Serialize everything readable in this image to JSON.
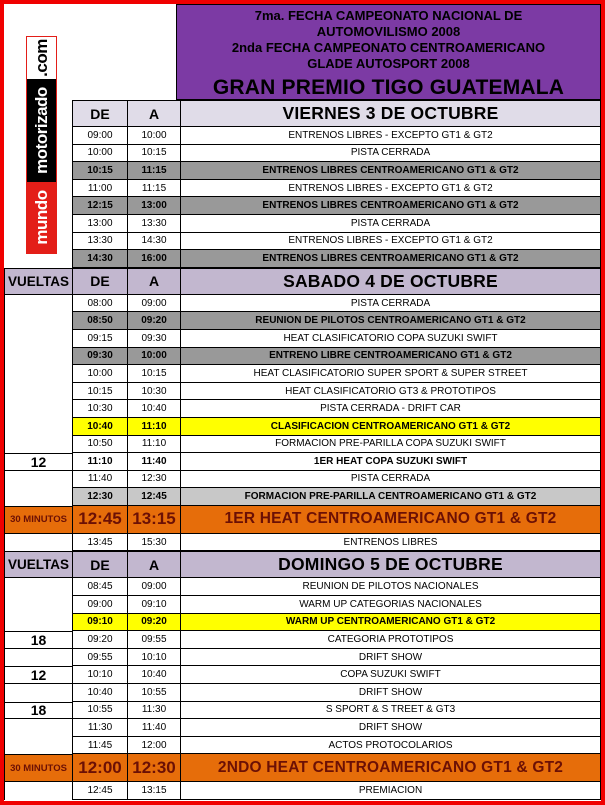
{
  "banner": {
    "mundo": "mundo",
    "motorizado": "motorizado",
    "com": ".com"
  },
  "header": {
    "lines": [
      "7ma. FECHA CAMPEONATO NACIONAL DE",
      "AUTOMOVILISMO 2008",
      "2nda FECHA CAMPEONATO CENTROAMERICANO",
      "GLADE AUTOSPORT 2008"
    ],
    "title": "GRAN PREMIO TIGO GUATEMALA"
  },
  "columns": {
    "vueltas": "VUELTAS",
    "de": "DE",
    "a": "A"
  },
  "colors": {
    "frame_red": "#F00000",
    "banner_red": "#E31E18",
    "purple": "#7C3AA4",
    "header_light": "#E0DCE8",
    "header_lavender": "#C2B7CF",
    "row_dark_gray": "#999999",
    "row_light_gray": "#C8C8C8",
    "row_yellow": "#FFFF00",
    "row_orange": "#E66D0A",
    "maroon_text": "#6B1005"
  },
  "sections": [
    {
      "title": "VIERNES 3 DE OCTUBRE",
      "rows": [
        {
          "vueltas": "",
          "de": "09:00",
          "a": "10:00",
          "event": "ENTRENOS LIBRES - EXCEPTO GT1 & GT2",
          "style": "plain"
        },
        {
          "vueltas": "",
          "de": "10:00",
          "a": "10:15",
          "event": "PISTA CERRADA",
          "style": "plain"
        },
        {
          "vueltas": "",
          "de": "10:15",
          "a": "11:15",
          "event": "ENTRENOS LIBRES CENTROAMERICANO GT1 & GT2",
          "style": "dark"
        },
        {
          "vueltas": "",
          "de": "11:00",
          "a": "11:15",
          "event": "ENTRENOS LIBRES - EXCEPTO GT1 & GT2",
          "style": "plain"
        },
        {
          "vueltas": "",
          "de": "12:15",
          "a": "13:00",
          "event": "ENTRENOS LIBRES CENTROAMERICANO GT1 & GT2",
          "style": "dark"
        },
        {
          "vueltas": "",
          "de": "13:00",
          "a": "13:30",
          "event": "PISTA CERRADA",
          "style": "plain"
        },
        {
          "vueltas": "",
          "de": "13:30",
          "a": "14:30",
          "event": "ENTRENOS LIBRES - EXCEPTO GT1 & GT2",
          "style": "plain"
        },
        {
          "vueltas": "",
          "de": "14:30",
          "a": "16:00",
          "event": "ENTRENOS LIBRES CENTROAMERICANO GT1 & GT2",
          "style": "dark"
        }
      ]
    },
    {
      "title": "SABADO 4 DE OCTUBRE",
      "rows": [
        {
          "vueltas": "",
          "de": "08:00",
          "a": "09:00",
          "event": "PISTA CERRADA",
          "style": "plain"
        },
        {
          "vueltas": "",
          "de": "08:50",
          "a": "09:20",
          "event": "REUNION DE PILOTOS CENTROAMERICANO GT1 & GT2",
          "style": "dark"
        },
        {
          "vueltas": "",
          "de": "09:15",
          "a": "09:30",
          "event": "HEAT CLASIFICATORIO COPA SUZUKI SWIFT",
          "style": "plain"
        },
        {
          "vueltas": "",
          "de": "09:30",
          "a": "10:00",
          "event": "ENTRENO LIBRE  CENTROAMERICANO GT1 & GT2",
          "style": "dark"
        },
        {
          "vueltas": "",
          "de": "10:00",
          "a": "10:15",
          "event": "HEAT CLASIFICATORIO SUPER SPORT & SUPER STREET",
          "style": "plain"
        },
        {
          "vueltas": "",
          "de": "10:15",
          "a": "10:30",
          "event": "HEAT CLASIFICATORIO GT3 & PROTOTIPOS",
          "style": "plain"
        },
        {
          "vueltas": "",
          "de": "10:30",
          "a": "10:40",
          "event": "PISTA CERRADA - DRIFT CAR",
          "style": "plain"
        },
        {
          "vueltas": "",
          "de": "10:40",
          "a": "11:10",
          "event": "CLASIFICACION  CENTROAMERICANO GT1 & GT2",
          "style": "yellow"
        },
        {
          "vueltas": "",
          "de": "10:50",
          "a": "11:10",
          "event": "FORMACION PRE-PARILLA COPA SUZUKI SWIFT",
          "style": "plain"
        },
        {
          "vueltas": "12",
          "de": "11:10",
          "a": "11:40",
          "event": "1ER HEAT COPA SUZUKI SWIFT",
          "style": "bold"
        },
        {
          "vueltas": "",
          "de": "11:40",
          "a": "12:30",
          "event": "PISTA CERRADA",
          "style": "plain"
        },
        {
          "vueltas": "",
          "de": "12:30",
          "a": "12:45",
          "event": "FORMACION PRE-PARILLA CENTROAMERICANO GT1 & GT2",
          "style": "light"
        },
        {
          "vueltas": "30 MINUTOS",
          "de": "12:45",
          "a": "13:15",
          "event": "1ER HEAT CENTROAMERICANO GT1 & GT2",
          "style": "orange"
        },
        {
          "vueltas": "",
          "de": "13:45",
          "a": "15:30",
          "event": "ENTRENOS LIBRES",
          "style": "plain"
        }
      ]
    },
    {
      "title": "DOMINGO 5 DE OCTUBRE",
      "rows": [
        {
          "vueltas": "",
          "de": "08:45",
          "a": "09:00",
          "event": "REUNION  DE PILOTOS NACIONALES",
          "style": "plain"
        },
        {
          "vueltas": "",
          "de": "09:00",
          "a": "09:10",
          "event": "WARM UP CATEGORIAS NACIONALES",
          "style": "plain"
        },
        {
          "vueltas": "",
          "de": "09:10",
          "a": "09:20",
          "event": "WARM UP CENTROAMERICANO GT1 & GT2",
          "style": "yellow"
        },
        {
          "vueltas": "18",
          "de": "09:20",
          "a": "09:55",
          "event": "CATEGORIA PROTOTIPOS",
          "style": "plain"
        },
        {
          "vueltas": "",
          "de": "09:55",
          "a": "10:10",
          "event": "DRIFT SHOW",
          "style": "plain"
        },
        {
          "vueltas": "12",
          "de": "10:10",
          "a": "10:40",
          "event": "COPA SUZUKI SWIFT",
          "style": "plain"
        },
        {
          "vueltas": "",
          "de": "10:40",
          "a": "10:55",
          "event": "DRIFT SHOW",
          "style": "plain"
        },
        {
          "vueltas": "18",
          "de": "10:55",
          "a": "11:30",
          "event": "S SPORT & S TREET & GT3",
          "style": "plain"
        },
        {
          "vueltas": "",
          "de": "11:30",
          "a": "11:40",
          "event": "DRIFT SHOW",
          "style": "plain"
        },
        {
          "vueltas": "",
          "de": "11:45",
          "a": "12:00",
          "event": "ACTOS PROTOCOLARIOS",
          "style": "plain"
        },
        {
          "vueltas": "30 MINUTOS",
          "de": "12:00",
          "a": "12:30",
          "event": "2NDO HEAT CENTROAMERICANO  GT1 & GT2",
          "style": "orange"
        },
        {
          "vueltas": "",
          "de": "12:45",
          "a": "13:15",
          "event": "PREMIACION",
          "style": "plain"
        }
      ]
    }
  ]
}
